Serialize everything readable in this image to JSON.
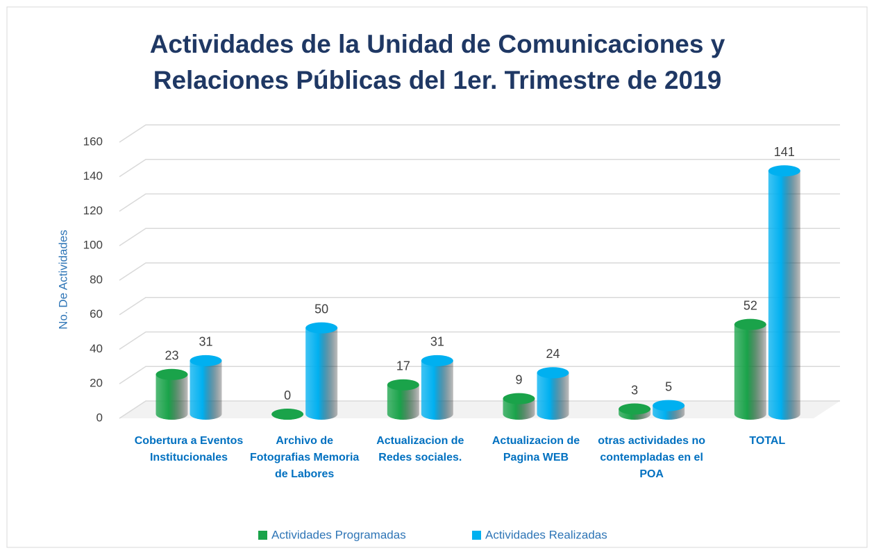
{
  "chart_data": {
    "type": "bar",
    "title": "Actividades de la Unidad de Comunicaciones y Relaciones Públicas del 1er. Trimestre de 2019",
    "y_label": "No. De Actividades",
    "categories": [
      "Cobertura a Eventos Institucionales",
      "Archivo de Fotografias Memoria de Labores",
      "Actualizacion de Redes sociales.",
      "Actualizacion de Pagina WEB",
      "otras actividades no contempladas en el POA",
      "TOTAL"
    ],
    "series": [
      {
        "name": "Actividades Programadas",
        "color": "#1aa34a",
        "values": [
          23,
          0,
          17,
          9,
          3,
          52
        ]
      },
      {
        "name": "Actividades Realizadas",
        "color": "#00b0f0",
        "values": [
          31,
          50,
          31,
          24,
          5,
          141
        ]
      }
    ],
    "ylim": [
      0,
      160
    ],
    "yticks": [
      0,
      20,
      40,
      60,
      80,
      100,
      120,
      140,
      160
    ],
    "grid": true,
    "legend": "bottom"
  }
}
